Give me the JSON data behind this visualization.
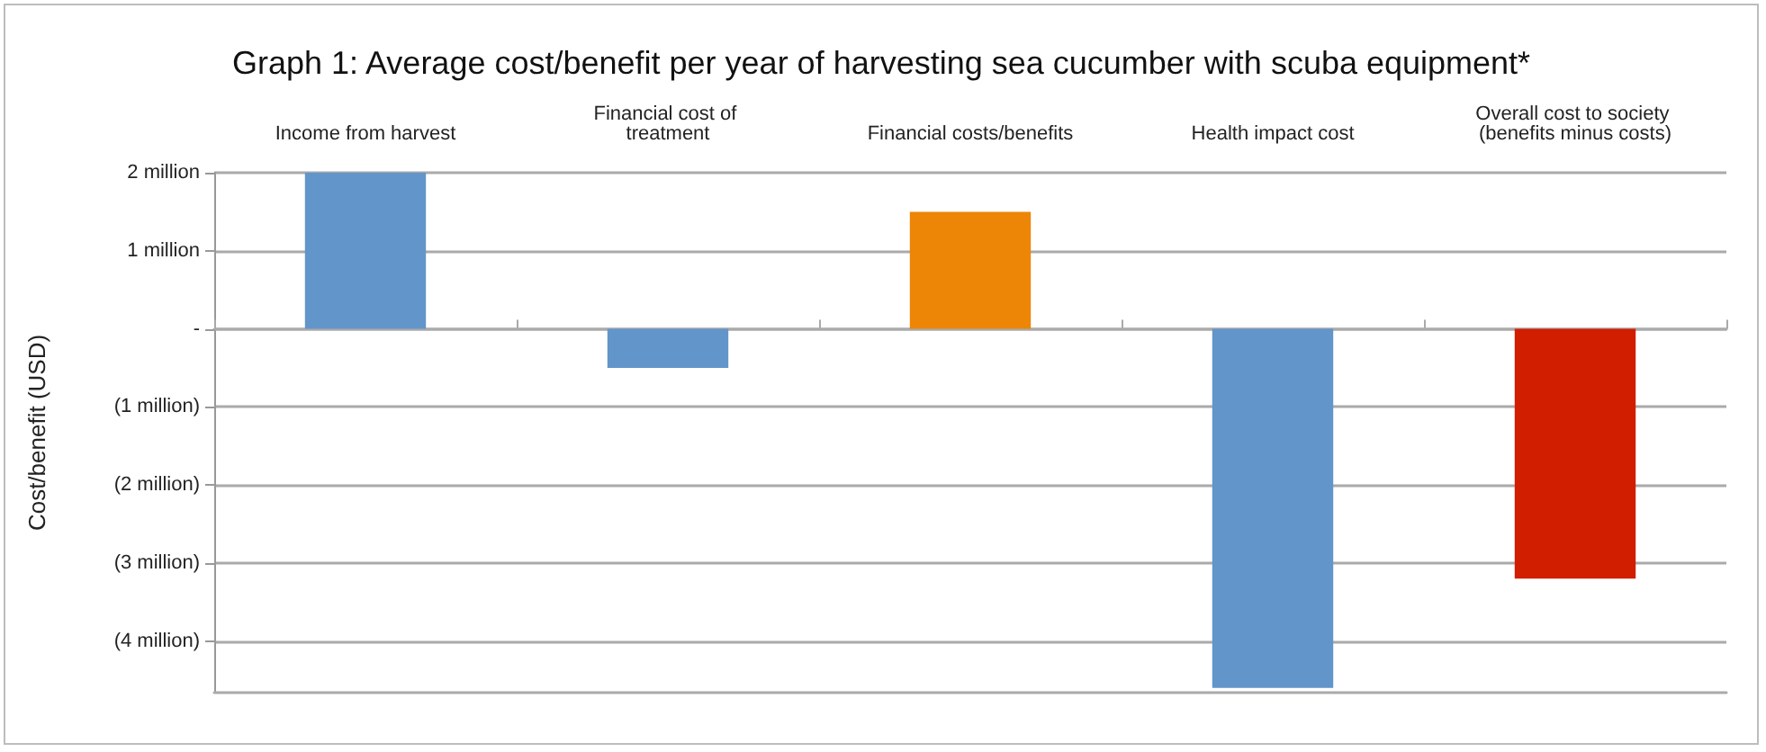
{
  "chart_data": {
    "type": "bar",
    "title": "Graph 1: Average cost/benefit per year of harvesting sea cucumber with scuba equipment*",
    "ylabel": "Cost/benefit (USD)",
    "categories": [
      "Income from harvest",
      "Financial cost of treatment",
      "Financial costs/benefits",
      "Health impact cost",
      "Overall cost to society (benefits minus costs)"
    ],
    "values": [
      2,
      -0.5,
      1.5,
      -4.6,
      -3.2
    ],
    "colors": [
      "#6295c9",
      "#6295c9",
      "#ed8506",
      "#6295c9",
      "#d11d00"
    ],
    "ylim": [
      -4.66,
      2
    ],
    "yticks": [
      {
        "value": 2,
        "label": "2 million"
      },
      {
        "value": 1,
        "label": "1 million"
      },
      {
        "value": 0,
        "label": "-"
      },
      {
        "value": -1,
        "label": "(1 million)"
      },
      {
        "value": -2,
        "label": "(2 million)"
      },
      {
        "value": -3,
        "label": "(3 million)"
      },
      {
        "value": -4,
        "label": "(4 million)"
      }
    ],
    "grid": "y"
  }
}
